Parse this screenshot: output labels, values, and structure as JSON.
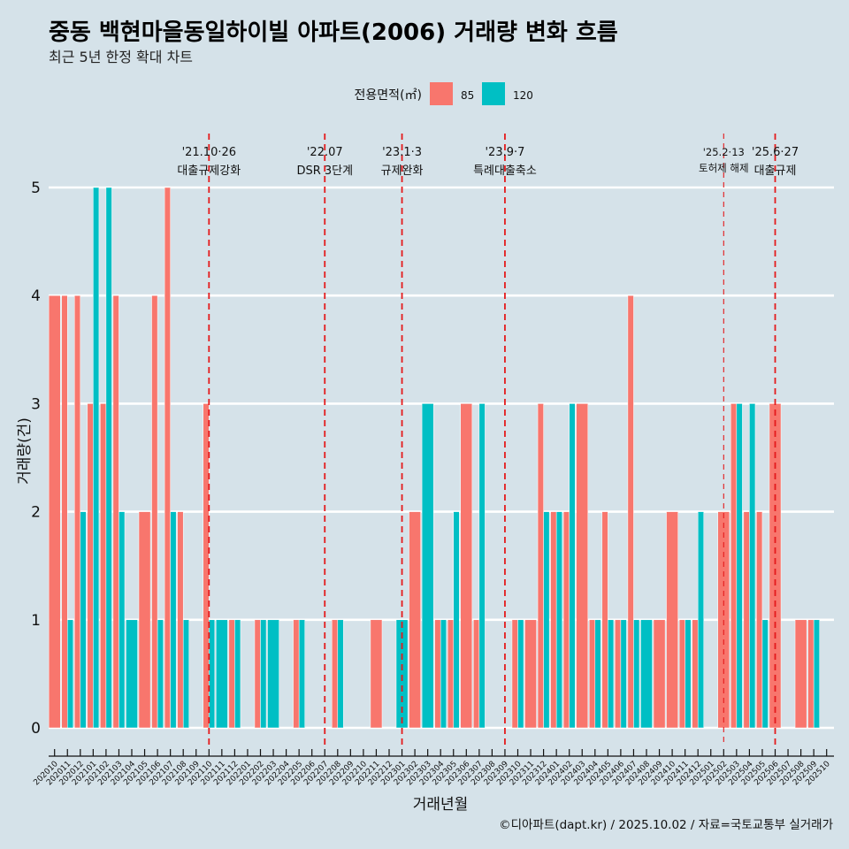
{
  "title": "중동 백현마을동일하이빌 아파트(2006) 거래량 변화 흐름",
  "subtitle": "최근 5년 한정 확대 차트",
  "legend": {
    "title": "전용면적(㎡)",
    "items": [
      {
        "label": "85",
        "color": "#F8766D"
      },
      {
        "label": "120",
        "color": "#00BFC4"
      }
    ]
  },
  "caption": "©디아파트(dapt.kr) / 2025.10.02 / 자료=국토교통부 실거래가",
  "colors": {
    "background": "#d5e2e9",
    "grid": "#ffffff",
    "event_line": "#e41a1c"
  },
  "chart_data": {
    "type": "bar",
    "position": "dodge",
    "title": "중동 백현마을동일하이빌 아파트(2006) 거래량 변화 흐름",
    "subtitle": "최근 5년 한정 확대 차트",
    "xlabel": "거래년월",
    "ylabel": "거래량(건)",
    "ylim": [
      0,
      5
    ],
    "yticks": [
      0,
      1,
      2,
      3,
      4,
      5
    ],
    "grid": true,
    "legend_position": "top",
    "categories": [
      "202010",
      "202011",
      "202012",
      "202101",
      "202102",
      "202103",
      "202104",
      "202105",
      "202106",
      "202107",
      "202108",
      "202109",
      "202110",
      "202111",
      "202112",
      "202201",
      "202202",
      "202203",
      "202204",
      "202205",
      "202206",
      "202207",
      "202208",
      "202209",
      "202210",
      "202211",
      "202212",
      "202301",
      "202302",
      "202303",
      "202304",
      "202305",
      "202306",
      "202307",
      "202308",
      "202309",
      "202310",
      "202311",
      "202312",
      "202401",
      "202402",
      "202403",
      "202404",
      "202405",
      "202406",
      "202407",
      "202408",
      "202409",
      "202410",
      "202411",
      "202412",
      "202501",
      "202502",
      "202503",
      "202504",
      "202505",
      "202506",
      "202507",
      "202508",
      "202509",
      "202510"
    ],
    "series": [
      {
        "name": "85",
        "color": "#F8766D",
        "values": [
          4,
          4,
          4,
          3,
          3,
          4,
          0,
          2,
          4,
          5,
          2,
          0,
          3,
          0,
          1,
          0,
          1,
          0,
          0,
          1,
          0,
          0,
          1,
          0,
          0,
          1,
          0,
          0,
          2,
          0,
          1,
          1,
          3,
          1,
          0,
          0,
          1,
          1,
          3,
          2,
          2,
          3,
          1,
          2,
          1,
          4,
          0,
          1,
          2,
          1,
          1,
          0,
          2,
          3,
          2,
          2,
          3,
          0,
          1,
          1,
          0
        ]
      },
      {
        "name": "120",
        "color": "#00BFC4",
        "values": [
          0,
          1,
          2,
          5,
          5,
          2,
          1,
          0,
          1,
          2,
          1,
          0,
          1,
          1,
          1,
          0,
          1,
          1,
          0,
          1,
          0,
          0,
          1,
          0,
          0,
          0,
          0,
          1,
          0,
          3,
          1,
          2,
          0,
          3,
          0,
          0,
          1,
          0,
          2,
          2,
          3,
          0,
          1,
          1,
          1,
          1,
          1,
          0,
          0,
          1,
          2,
          0,
          0,
          3,
          3,
          1,
          0,
          0,
          0,
          1,
          0
        ]
      }
    ],
    "annotations": [
      {
        "category": "202110",
        "date": "'21.10·26",
        "label": "대출규제강화",
        "kind": "major"
      },
      {
        "category": "202207",
        "date": "'22.07",
        "label": "DSR 3단계",
        "kind": "major"
      },
      {
        "category": "202301",
        "date": "'23.1·3",
        "label": "규제완화",
        "kind": "major"
      },
      {
        "category": "202309",
        "date": "'23.9·7",
        "label": "특례대출축소",
        "kind": "major"
      },
      {
        "category": "202502",
        "date": "'25.2·13",
        "label": "토허제 해제",
        "kind": "minor"
      },
      {
        "category": "202506",
        "date": "'25.6·27",
        "label": "대출규제",
        "kind": "major"
      }
    ]
  }
}
